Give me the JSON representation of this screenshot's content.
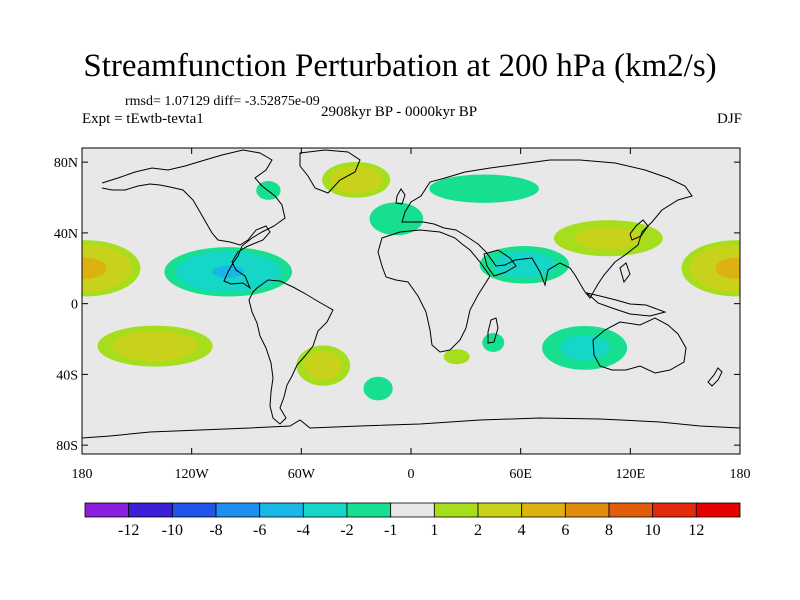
{
  "title": "Streamfunction Perturbation at 200 hPa (km2/s)",
  "stats": "rmsd= 1.07129 diff= -3.52875e-09",
  "experiment": "Expt = tEwtb-tevta1",
  "period": "2908kyr BP - 0000kyr BP",
  "season": "DJF",
  "lat_ticks": [
    "80N",
    "40N",
    "0",
    "40S",
    "80S"
  ],
  "lon_ticks": [
    "180",
    "120W",
    "60W",
    "0",
    "60E",
    "120E",
    "180"
  ],
  "colorbar": {
    "labels": [
      "-12",
      "-10",
      "-8",
      "-6",
      "-4",
      "-2",
      "-1",
      "1",
      "2",
      "4",
      "6",
      "8",
      "10",
      "12"
    ],
    "colors": [
      "#8a1fe0",
      "#3a1fd6",
      "#1f55e8",
      "#1f8ff0",
      "#18b7e8",
      "#16d6c8",
      "#16e090",
      "#e8e8e8",
      "#a6de1e",
      "#c8d21a",
      "#dcb212",
      "#e08a0e",
      "#e35c0b",
      "#e32a0a",
      "#e80000"
    ]
  },
  "background_color": "#e8e8e8",
  "anomalies": [
    {
      "name": "central-pacific-north-high",
      "lon": -178,
      "lat": 20,
      "rlon": 34,
      "rlat": 18,
      "peak": 4.5
    },
    {
      "name": "central-pacific-north-high-east",
      "lon": 178,
      "lat": 20,
      "rlon": 34,
      "rlat": 18,
      "peak": 4.5
    },
    {
      "name": "caribbean-low",
      "lon": -100,
      "lat": 18,
      "rlon": 40,
      "rlat": 16,
      "peak": -4.2
    },
    {
      "name": "south-pacific-high",
      "lon": -140,
      "lat": -24,
      "rlon": 38,
      "rlat": 14,
      "peak": 3.2
    },
    {
      "name": "greenland-low",
      "lon": -78,
      "lat": 64,
      "rlon": 10,
      "rlat": 8,
      "peak": -1.8
    },
    {
      "name": "north-atlantic-high",
      "lon": -30,
      "lat": 70,
      "rlon": 22,
      "rlat": 12,
      "peak": 3.5
    },
    {
      "name": "eurasia-arctic-low",
      "lon": 40,
      "lat": 65,
      "rlon": 45,
      "rlat": 12,
      "peak": -1.8
    },
    {
      "name": "atlantic-europe-low",
      "lon": -8,
      "lat": 48,
      "rlon": 22,
      "rlat": 14,
      "peak": -1.8
    },
    {
      "name": "arabia-low",
      "lon": 62,
      "lat": 22,
      "rlon": 30,
      "rlat": 13,
      "peak": -3.0
    },
    {
      "name": "east-asia-high",
      "lon": 108,
      "lat": 37,
      "rlon": 38,
      "rlat": 13,
      "peak": 2.6
    },
    {
      "name": "south-atlantic-high",
      "lon": -48,
      "lat": -35,
      "rlon": 18,
      "rlat": 14,
      "peak": 3.0
    },
    {
      "name": "south-atlantic-low",
      "lon": -18,
      "lat": -48,
      "rlon": 12,
      "rlat": 10,
      "peak": -1.8
    },
    {
      "name": "southern-africa-high",
      "lon": 25,
      "lat": -30,
      "rlon": 10,
      "rlat": 6,
      "peak": 2.0
    },
    {
      "name": "madagascar-low",
      "lon": 45,
      "lat": -22,
      "rlon": 9,
      "rlat": 8,
      "peak": -1.8
    },
    {
      "name": "indian-ocean-low",
      "lon": 95,
      "lat": -25,
      "rlon": 30,
      "rlat": 16,
      "peak": -2.5
    }
  ]
}
